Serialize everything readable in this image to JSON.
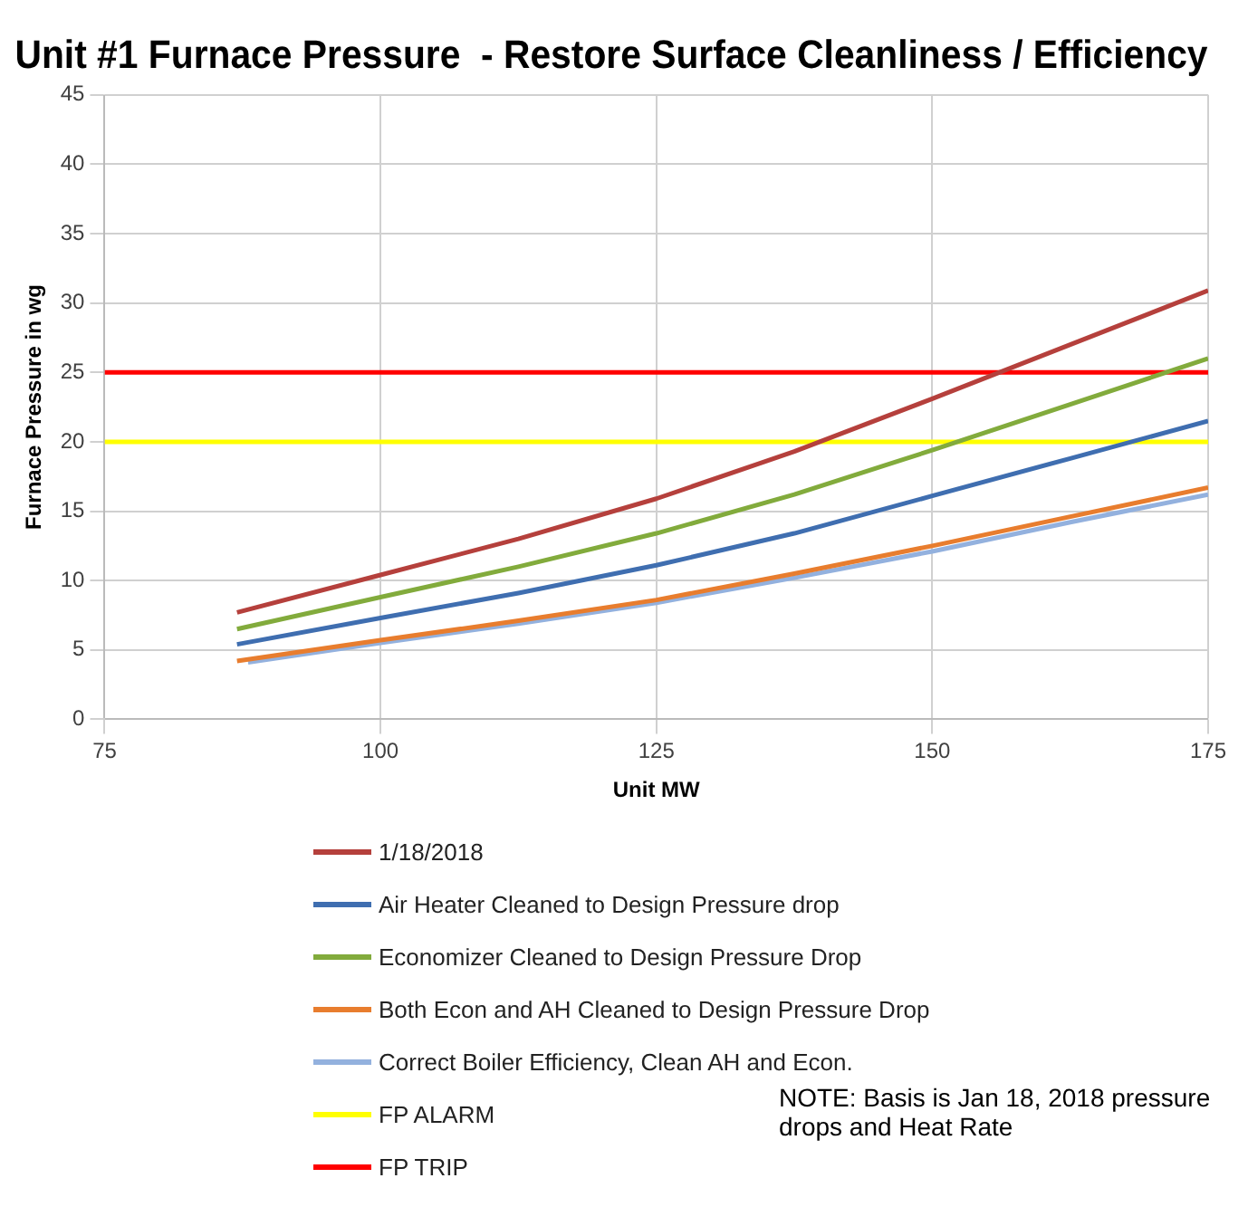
{
  "chart_data": {
    "type": "line",
    "title": "Unit #1 Furnace Pressure  - Restore Surface Cleanliness / Efficiency",
    "xlabel": "Unit MW",
    "ylabel": "Furnace Pressure in wg",
    "x": [
      87,
      100,
      112.5,
      125,
      137.5,
      150,
      162.5,
      175
    ],
    "series": [
      {
        "name": "1/18/2018",
        "color": "#b5403c",
        "values": [
          7.7,
          10.4,
          13,
          15.9,
          19.3,
          23.1,
          27,
          30.9
        ]
      },
      {
        "name": "Air Heater Cleaned to Design Pressure drop",
        "color": "#3f6eb0",
        "values": [
          5.4,
          7.3,
          9.1,
          11.1,
          13.4,
          16.1,
          18.8,
          21.5
        ]
      },
      {
        "name": "Economizer Cleaned to Design Pressure Drop",
        "color": "#82ab3c",
        "values": [
          6.5,
          8.8,
          11,
          13.4,
          16.2,
          19.4,
          22.7,
          26
        ]
      },
      {
        "name": "Both Econ and AH Cleaned to Design Pressure Drop",
        "color": "#e87d2e",
        "values": [
          4.2,
          5.7,
          7.1,
          8.6,
          10.5,
          12.5,
          14.6,
          16.7
        ]
      },
      {
        "name": "Correct Boiler Efficiency, Clean AH and Econ.",
        "color": "#93b1de",
        "x": [
          88,
          100,
          112.5,
          125,
          137.5,
          150,
          162.5,
          175
        ],
        "values": [
          4.1,
          5.5,
          6.9,
          8.4,
          10.2,
          12.1,
          14.2,
          16.2
        ]
      },
      {
        "name": "FP ALARM",
        "color": "#ffff00",
        "x": [
          75,
          175
        ],
        "values": [
          20,
          20
        ]
      },
      {
        "name": "FP TRIP",
        "color": "#ff0000",
        "x": [
          75,
          175
        ],
        "values": [
          25,
          25
        ]
      }
    ],
    "xlim": [
      75,
      175
    ],
    "xticks": [
      75,
      100,
      125,
      150,
      175
    ],
    "ylim": [
      0,
      45
    ],
    "yticks": [
      0,
      5,
      10,
      15,
      20,
      25,
      30,
      35,
      40,
      45
    ],
    "grid": true,
    "legend": "bottom",
    "marker": "none",
    "line_style": "solid",
    "annotations": [
      "NOTE: Basis is Jan 18, 2018 pressure drops and Heat Rate"
    ]
  }
}
